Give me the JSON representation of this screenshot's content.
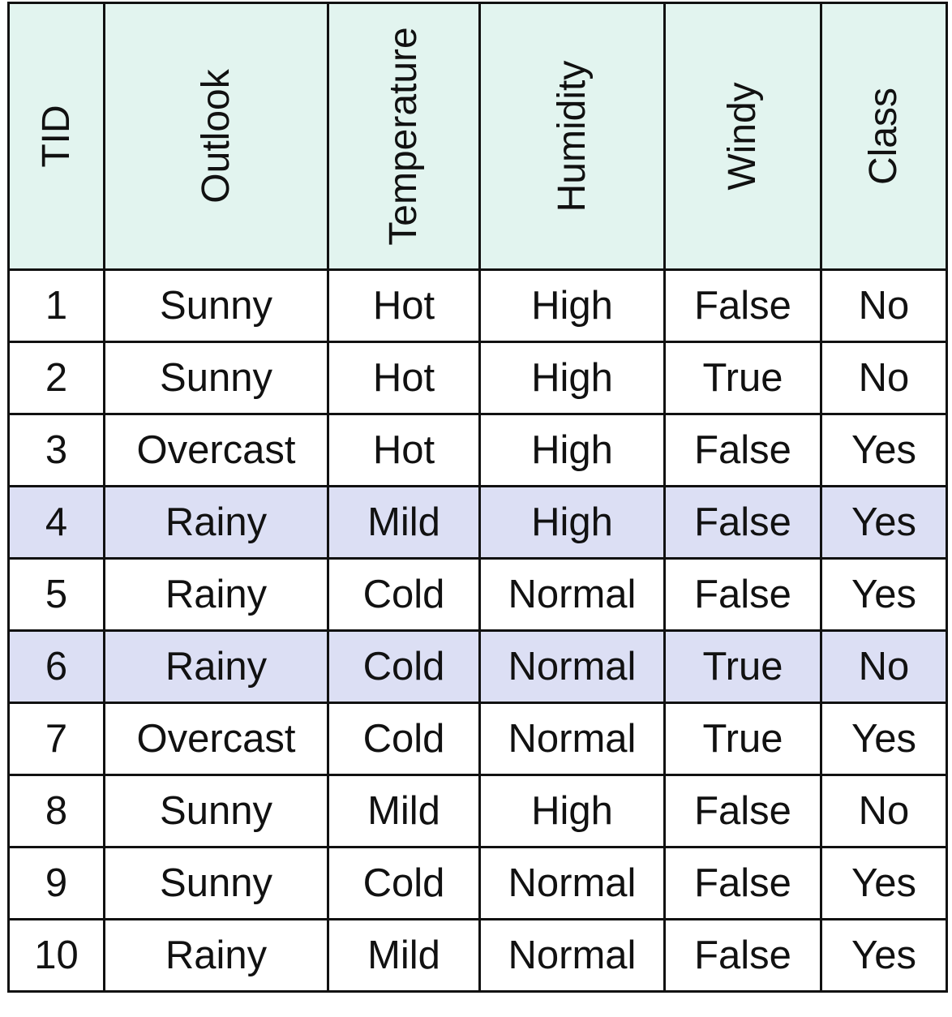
{
  "table": {
    "columns": [
      "TID",
      "Outlook",
      "Temperature",
      "Humidity",
      "Windy",
      "Class"
    ],
    "rows": [
      [
        "1",
        "Sunny",
        "Hot",
        "High",
        "False",
        "No"
      ],
      [
        "2",
        "Sunny",
        "Hot",
        "High",
        "True",
        "No"
      ],
      [
        "3",
        "Overcast",
        "Hot",
        "High",
        "False",
        "Yes"
      ],
      [
        "4",
        "Rainy",
        "Mild",
        "High",
        "False",
        "Yes"
      ],
      [
        "5",
        "Rainy",
        "Cold",
        "Normal",
        "False",
        "Yes"
      ],
      [
        "6",
        "Rainy",
        "Cold",
        "Normal",
        "True",
        "No"
      ],
      [
        "7",
        "Overcast",
        "Cold",
        "Normal",
        "True",
        "Yes"
      ],
      [
        "8",
        "Sunny",
        "Mild",
        "High",
        "False",
        "No"
      ],
      [
        "9",
        "Sunny",
        "Cold",
        "Normal",
        "False",
        "Yes"
      ],
      [
        "10",
        "Rainy",
        "Mild",
        "Normal",
        "False",
        "Yes"
      ]
    ],
    "highlighted_rows": [
      4,
      6
    ]
  },
  "colors": {
    "header_background": "#e2f4ef",
    "highlight_background": "#dcdff4",
    "border": "#111111"
  }
}
